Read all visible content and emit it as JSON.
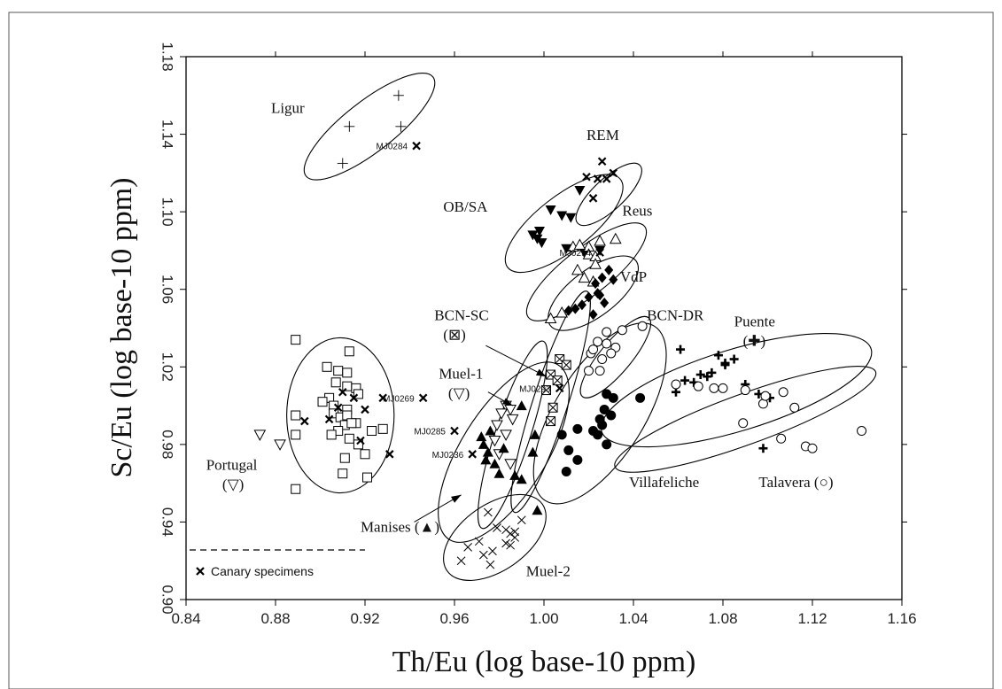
{
  "chart_data": {
    "type": "scatter",
    "xlabel": "Th/Eu (log base-10 ppm)",
    "ylabel": "Sc/Eu (log base-10 ppm)",
    "xlim": [
      0.84,
      1.16
    ],
    "ylim": [
      0.9,
      1.18
    ],
    "xticks": [
      "0.84",
      "0.88",
      "0.92",
      "0.96",
      "1.00",
      "1.04",
      "1.08",
      "1.12",
      "1.16"
    ],
    "yticks": [
      "0.90",
      "0.94",
      "0.98",
      "1.02",
      "1.06",
      "1.10",
      "1.14",
      "1.18"
    ],
    "grid": false,
    "legend": {
      "position": "bottom-left",
      "entries": [
        {
          "marker": "x",
          "label": "Canary specimens"
        }
      ]
    },
    "groups": [
      {
        "label": "Ligur",
        "marker": "plus-thin",
        "ellipse": {
          "center": [
            0.922,
            1.144
          ],
          "rx": 0.036,
          "ry": 0.013,
          "angle": -38
        },
        "points": [
          [
            0.935,
            1.16
          ],
          [
            0.913,
            1.144
          ],
          [
            0.936,
            1.144
          ],
          [
            0.91,
            1.125
          ]
        ]
      },
      {
        "label": "REM",
        "marker": "x",
        "ellipse": {
          "center": [
            1.029,
            1.109
          ],
          "rx": 0.019,
          "ry": 0.008,
          "angle": -43
        },
        "points": [
          [
            1.026,
            1.126
          ],
          [
            1.031,
            1.12
          ],
          [
            1.019,
            1.118
          ],
          [
            1.024,
            1.117
          ],
          [
            1.028,
            1.117
          ],
          [
            1.022,
            1.107
          ]
        ]
      },
      {
        "label": "OB/SA",
        "marker": "triangle-down-filled",
        "ellipse": {
          "center": [
            1.009,
            1.094
          ],
          "rx": 0.032,
          "ry": 0.014,
          "angle": -38
        },
        "points": [
          [
            1.016,
            1.111
          ],
          [
            1.003,
            1.101
          ],
          [
            1.008,
            1.098
          ],
          [
            1.012,
            1.097
          ],
          [
            0.995,
            1.088
          ],
          [
            0.997,
            1.086
          ],
          [
            0.999,
            1.084
          ],
          [
            1.01,
            1.081
          ],
          [
            1.018,
            1.079
          ],
          [
            1.025,
            1.08
          ],
          [
            0.998,
            1.09
          ]
        ]
      },
      {
        "label": "Reus",
        "marker": "triangle-up-open",
        "ellipse": {
          "center": [
            1.019,
            1.069
          ],
          "rx": 0.033,
          "ry": 0.012,
          "angle": -38
        },
        "points": [
          [
            1.025,
            1.085
          ],
          [
            1.032,
            1.086
          ],
          [
            1.02,
            1.082
          ],
          [
            1.013,
            1.082
          ],
          [
            1.016,
            1.083
          ],
          [
            1.02,
            1.078
          ],
          [
            1.023,
            1.077
          ],
          [
            1.015,
            1.07
          ],
          [
            1.018,
            1.066
          ],
          [
            1.022,
            1.064
          ],
          [
            1.003,
            1.045
          ],
          [
            1.008,
            1.048
          ],
          [
            1.023,
            1.073
          ]
        ]
      },
      {
        "label": "VdP",
        "marker": "diamond-filled",
        "ellipse": {
          "center": [
            1.022,
            1.058
          ],
          "rx": 0.024,
          "ry": 0.012,
          "angle": -37
        },
        "points": [
          [
            1.029,
            1.07
          ],
          [
            1.026,
            1.066
          ],
          [
            1.023,
            1.063
          ],
          [
            1.031,
            1.065
          ],
          [
            1.02,
            1.056
          ],
          [
            1.025,
            1.057
          ],
          [
            1.027,
            1.053
          ],
          [
            1.017,
            1.052
          ],
          [
            1.014,
            1.05
          ],
          [
            1.011,
            1.049
          ],
          [
            1.022,
            1.047
          ],
          [
            1.024,
            1.058
          ]
        ]
      },
      {
        "label": "BCN-DR",
        "marker": "circle-open",
        "ellipse": {
          "center": [
            1.032,
            1.025
          ],
          "rx": 0.023,
          "ry": 0.008,
          "angle": -50
        },
        "points": [
          [
            1.028,
            1.038
          ],
          [
            1.035,
            1.039
          ],
          [
            1.024,
            1.033
          ],
          [
            1.028,
            1.032
          ],
          [
            1.032,
            1.03
          ],
          [
            1.021,
            1.027
          ],
          [
            1.026,
            1.024
          ],
          [
            1.03,
            1.027
          ],
          [
            1.025,
            1.018
          ],
          [
            1.02,
            1.018
          ],
          [
            1.044,
            1.041
          ],
          [
            1.022,
            1.029
          ]
        ]
      },
      {
        "label": "BCN-SC",
        "marker": "boxed-x",
        "ellipse": {
          "center": [
            1.003,
            1.002
          ],
          "rx": 0.052,
          "ry": 0.009,
          "angle": -72
        },
        "points": [
          [
            1.007,
            1.024
          ],
          [
            1.003,
            1.016
          ],
          [
            1.001,
            1.008
          ],
          [
            1.004,
            0.999
          ],
          [
            1.01,
            1.021
          ],
          [
            1.006,
            1.013
          ],
          [
            1.003,
            0.992
          ]
        ]
      },
      {
        "label": "Villafeliche",
        "marker": "circle-filled",
        "ellipse": {
          "center": [
            1.025,
            0.996
          ],
          "rx": 0.046,
          "ry": 0.023,
          "angle": -58
        },
        "points": [
          [
            1.028,
            1.006
          ],
          [
            1.031,
            1.004
          ],
          [
            1.027,
            0.998
          ],
          [
            1.03,
            0.995
          ],
          [
            1.026,
            0.99
          ],
          [
            1.024,
            0.985
          ],
          [
            1.028,
            0.98
          ],
          [
            1.022,
            0.987
          ],
          [
            1.015,
            0.988
          ],
          [
            1.043,
            1.004
          ],
          [
            1.008,
            0.985
          ],
          [
            1.011,
            0.977
          ],
          [
            1.015,
            0.972
          ],
          [
            1.01,
            0.966
          ],
          [
            1.025,
            0.993
          ]
        ]
      },
      {
        "label": "Puente",
        "marker": "plus-bold",
        "ellipse": {
          "center": [
            1.086,
            1.008
          ],
          "rx": 0.063,
          "ry": 0.021,
          "angle": -17
        },
        "points": [
          [
            1.061,
            1.029
          ],
          [
            1.078,
            1.026
          ],
          [
            1.085,
            1.024
          ],
          [
            1.081,
            1.021
          ],
          [
            1.07,
            1.016
          ],
          [
            1.073,
            1.015
          ],
          [
            1.075,
            1.017
          ],
          [
            1.063,
            1.013
          ],
          [
            1.067,
            1.012
          ],
          [
            1.059,
            1.007
          ],
          [
            1.096,
            1.006
          ],
          [
            1.101,
            1.004
          ],
          [
            1.09,
            1.011
          ],
          [
            1.081,
            1.022
          ],
          [
            1.098,
            0.978
          ]
        ]
      },
      {
        "label": "Talavera",
        "marker": "circle-open",
        "ellipse": {
          "center": [
            1.09,
            0.993
          ],
          "rx": 0.062,
          "ry": 0.013,
          "angle": -20
        },
        "points": [
          [
            1.059,
            1.011
          ],
          [
            1.069,
            1.01
          ],
          [
            1.076,
            1.009
          ],
          [
            1.08,
            1.009
          ],
          [
            1.09,
            1.008
          ],
          [
            1.098,
            1.001
          ],
          [
            1.107,
            1.007
          ],
          [
            1.112,
            0.999
          ],
          [
            1.089,
            0.991
          ],
          [
            1.106,
            0.983
          ],
          [
            1.117,
            0.979
          ],
          [
            1.12,
            0.978
          ],
          [
            1.142,
            0.987
          ],
          [
            1.099,
            1.005
          ]
        ]
      },
      {
        "label": "Muel-1",
        "marker": "triangle-down-open",
        "ellipse": {
          "center": [
            0.986,
            0.985
          ],
          "rx": 0.044,
          "ry": 0.009,
          "angle": -72
        },
        "points": [
          [
            0.983,
            1.0
          ],
          [
            0.985,
            0.998
          ],
          [
            0.981,
            0.996
          ],
          [
            0.986,
            0.993
          ],
          [
            0.979,
            0.99
          ],
          [
            0.983,
            0.985
          ],
          [
            0.978,
            0.982
          ],
          [
            0.985,
            0.97
          ],
          [
            0.98,
            0.975
          ]
        ]
      },
      {
        "label": "Manises",
        "marker": "triangle-up-filled",
        "ellipse": {
          "center": [
            0.982,
            0.976
          ],
          "rx": 0.046,
          "ry": 0.022,
          "angle": -58
        },
        "points": [
          [
            0.99,
            1.0
          ],
          [
            0.976,
            0.987
          ],
          [
            0.973,
            0.98
          ],
          [
            0.975,
            0.976
          ],
          [
            0.974,
            0.972
          ],
          [
            0.978,
            0.97
          ],
          [
            0.982,
            0.978
          ],
          [
            0.987,
            0.964
          ],
          [
            0.99,
            0.962
          ],
          [
            0.996,
            0.985
          ],
          [
            0.995,
            0.976
          ],
          [
            0.997,
            0.946
          ],
          [
            0.98,
            0.965
          ],
          [
            0.972,
            0.984
          ]
        ]
      },
      {
        "label": "Muel-2",
        "marker": "x-thin",
        "ellipse": {
          "center": [
            0.978,
            0.932
          ],
          "rx": 0.026,
          "ry": 0.017,
          "angle": -35
        },
        "points": [
          [
            0.975,
            0.945
          ],
          [
            0.979,
            0.937
          ],
          [
            0.983,
            0.936
          ],
          [
            0.985,
            0.934
          ],
          [
            0.987,
            0.932
          ],
          [
            0.987,
            0.935
          ],
          [
            0.99,
            0.941
          ],
          [
            0.983,
            0.929
          ],
          [
            0.985,
            0.928
          ],
          [
            0.977,
            0.925
          ],
          [
            0.973,
            0.923
          ],
          [
            0.966,
            0.927
          ],
          [
            0.976,
            0.918
          ],
          [
            0.963,
            0.92
          ],
          [
            0.971,
            0.93
          ]
        ]
      },
      {
        "label": "Portugal",
        "marker": "square-open",
        "ellipse": {
          "center": [
            0.909,
            0.995
          ],
          "rx": 0.024,
          "ry": 0.04,
          "angle": 0
        },
        "points": [
          [
            0.889,
            1.034
          ],
          [
            0.913,
            1.028
          ],
          [
            0.903,
            1.02
          ],
          [
            0.908,
            1.018
          ],
          [
            0.912,
            1.017
          ],
          [
            0.907,
            1.012
          ],
          [
            0.912,
            1.01
          ],
          [
            0.916,
            1.009
          ],
          [
            0.917,
            1.006
          ],
          [
            0.904,
            1.004
          ],
          [
            0.901,
            1.002
          ],
          [
            0.906,
            1.0
          ],
          [
            0.912,
            0.998
          ],
          [
            0.906,
            0.996
          ],
          [
            0.909,
            0.994
          ],
          [
            0.912,
            0.995
          ],
          [
            0.916,
            0.991
          ],
          [
            0.911,
            0.99
          ],
          [
            0.908,
            0.987
          ],
          [
            0.905,
            0.985
          ],
          [
            0.913,
            0.983
          ],
          [
            0.917,
            0.98
          ],
          [
            0.92,
            0.975
          ],
          [
            0.911,
            0.973
          ],
          [
            0.928,
            0.988
          ],
          [
            0.923,
            0.987
          ],
          [
            0.914,
            0.991
          ],
          [
            0.889,
            0.995
          ],
          [
            0.889,
            0.985
          ],
          [
            0.91,
            0.965
          ],
          [
            0.921,
            0.963
          ],
          [
            0.889,
            0.957
          ]
        ]
      },
      {
        "label": "Portugal",
        "marker": "triangle-down-open",
        "ellipse": null,
        "points": [
          [
            0.873,
            0.985
          ],
          [
            0.882,
            0.98
          ]
        ]
      }
    ],
    "canary_specimens": [
      {
        "label": "MJ0284",
        "point": [
          0.943,
          1.134
        ]
      },
      {
        "label": "MJ0294",
        "point": [
          1.025,
          1.079
        ]
      },
      {
        "label": "MJ0293",
        "point": [
          1.007,
          1.009
        ]
      },
      {
        "label": "MJ0269",
        "point": [
          0.946,
          1.004
        ]
      },
      {
        "label": "MJ0285",
        "point": [
          0.96,
          0.987
        ]
      },
      {
        "label": "MJ0236",
        "point": [
          0.968,
          0.975
        ]
      },
      {
        "label": "",
        "point": [
          0.91,
          1.007
        ]
      },
      {
        "label": "",
        "point": [
          0.908,
          0.999
        ]
      },
      {
        "label": "",
        "point": [
          0.92,
          0.998
        ]
      },
      {
        "label": "",
        "point": [
          0.915,
          1.004
        ]
      },
      {
        "label": "",
        "point": [
          0.893,
          0.992
        ]
      },
      {
        "label": "",
        "point": [
          0.904,
          0.993
        ]
      },
      {
        "label": "",
        "point": [
          0.918,
          0.982
        ]
      },
      {
        "label": "",
        "point": [
          0.928,
          1.004
        ]
      },
      {
        "label": "",
        "point": [
          0.931,
          0.975
        ]
      }
    ],
    "group_labels": [
      {
        "text": "Ligur",
        "symbol": "",
        "pos": [
          0.878,
          1.151
        ]
      },
      {
        "text": "REM",
        "symbol": "",
        "pos": [
          1.019,
          1.137
        ]
      },
      {
        "text": "OB/SA",
        "symbol": "",
        "pos": [
          0.955,
          1.1
        ]
      },
      {
        "text": "Reus",
        "symbol": "",
        "pos": [
          1.035,
          1.098
        ]
      },
      {
        "text": "VdP",
        "symbol": "",
        "pos": [
          1.034,
          1.064
        ]
      },
      {
        "text": "BCN-SC",
        "symbol": "(⊠)",
        "pos": [
          0.951,
          1.044
        ]
      },
      {
        "text": "BCN-DR",
        "symbol": "",
        "pos": [
          1.046,
          1.044
        ]
      },
      {
        "text": "Puente",
        "symbol": "(✚)",
        "pos": [
          1.085,
          1.041
        ]
      },
      {
        "text": "Muel-1",
        "symbol": "(▽)",
        "pos": [
          0.953,
          1.014
        ]
      },
      {
        "text": "Portugal",
        "symbol": "(▽)",
        "pos": [
          0.849,
          0.967
        ]
      },
      {
        "text": "Villafeliche",
        "symbol": "",
        "pos": [
          1.038,
          0.958
        ]
      },
      {
        "text": "Talavera (○)",
        "symbol": "",
        "pos": [
          1.096,
          0.958
        ]
      },
      {
        "text": "Manises (▲)",
        "symbol": "",
        "pos": [
          0.918,
          0.935
        ]
      },
      {
        "text": "Muel-2",
        "symbol": "",
        "pos": [
          0.992,
          0.912
        ]
      }
    ],
    "arrows": [
      {
        "from": [
          0.974,
          1.031
        ],
        "to": [
          1.001,
          1.015
        ]
      },
      {
        "from": [
          0.975,
          1.007
        ],
        "to": [
          0.986,
          1.0
        ]
      },
      {
        "from": [
          0.942,
          0.94
        ],
        "to": [
          0.963,
          0.954
        ]
      }
    ]
  }
}
